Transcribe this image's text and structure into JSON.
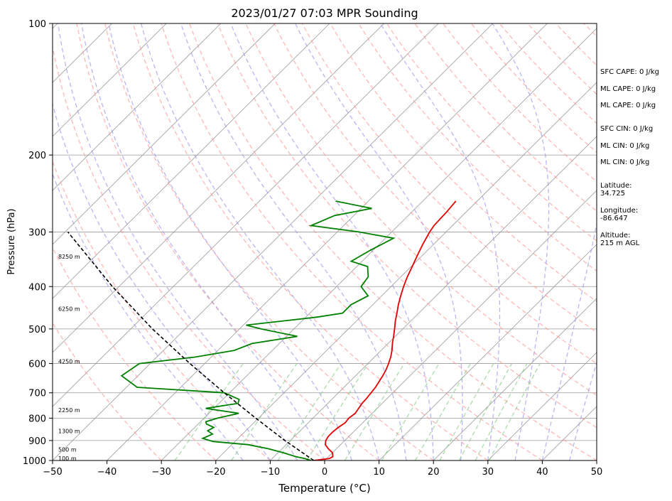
{
  "chart_data": {
    "type": "skew-t",
    "title": "2023/01/27 07:03 MPR Sounding",
    "xlabel": "Temperature (°C)",
    "ylabel": "Pressure (hPa)",
    "xlim": [
      -50,
      50
    ],
    "ylim": [
      1000,
      100
    ],
    "y_scale": "log",
    "grid": true,
    "x_ticks": [
      -50,
      -40,
      -30,
      -20,
      -10,
      0,
      10,
      20,
      30,
      40,
      50
    ],
    "y_ticks": [
      1000,
      900,
      800,
      700,
      600,
      500,
      400,
      300,
      200,
      100
    ],
    "colors": {
      "temperature": "#e00000",
      "dewpoint": "#008000",
      "parcel": "#000000",
      "dry_adiabat": "#ff9999",
      "moist_adiabat": "#9999ee",
      "mixing_ratio": "#88cc88",
      "isotherm": "#999999"
    },
    "series": [
      {
        "key": "temperature",
        "points": [
          [
            1000,
            -2.0
          ],
          [
            990,
            0.5
          ],
          [
            980,
            0.8
          ],
          [
            960,
            0.0
          ],
          [
            940,
            -1.5
          ],
          [
            920,
            -2.8
          ],
          [
            900,
            -3.5
          ],
          [
            880,
            -3.8
          ],
          [
            860,
            -3.8
          ],
          [
            840,
            -3.6
          ],
          [
            820,
            -3.2
          ],
          [
            800,
            -3.4
          ],
          [
            780,
            -3.1
          ],
          [
            760,
            -3.4
          ],
          [
            740,
            -3.7
          ],
          [
            720,
            -3.8
          ],
          [
            700,
            -4.0
          ],
          [
            680,
            -4.2
          ],
          [
            660,
            -4.6
          ],
          [
            640,
            -5.0
          ],
          [
            620,
            -5.5
          ],
          [
            600,
            -6.2
          ],
          [
            580,
            -7.0
          ],
          [
            560,
            -8.0
          ],
          [
            540,
            -9.2
          ],
          [
            520,
            -10.3
          ],
          [
            500,
            -11.5
          ],
          [
            480,
            -12.8
          ],
          [
            460,
            -14.0
          ],
          [
            440,
            -15.3
          ],
          [
            420,
            -16.5
          ],
          [
            400,
            -17.7
          ],
          [
            380,
            -18.8
          ],
          [
            360,
            -19.8
          ],
          [
            340,
            -20.9
          ],
          [
            320,
            -22.0
          ],
          [
            300,
            -23.0
          ],
          [
            290,
            -23.4
          ],
          [
            280,
            -23.5
          ],
          [
            270,
            -23.6
          ],
          [
            260,
            -23.8
          ],
          [
            255,
            -23.9
          ]
        ]
      },
      {
        "key": "dewpoint",
        "points": [
          [
            1000,
            -2.5
          ],
          [
            990,
            -4.0
          ],
          [
            980,
            -6.0
          ],
          [
            960,
            -9.0
          ],
          [
            940,
            -12.5
          ],
          [
            920,
            -17.0
          ],
          [
            905,
            -24.0
          ],
          [
            890,
            -26.5
          ],
          [
            870,
            -25.5
          ],
          [
            855,
            -27.0
          ],
          [
            840,
            -26.5
          ],
          [
            825,
            -28.5
          ],
          [
            815,
            -29.0
          ],
          [
            800,
            -27.5
          ],
          [
            780,
            -24.5
          ],
          [
            760,
            -31.5
          ],
          [
            740,
            -26.5
          ],
          [
            725,
            -27.0
          ],
          [
            700,
            -31.0
          ],
          [
            680,
            -48.0
          ],
          [
            640,
            -53.0
          ],
          [
            600,
            -52.0
          ],
          [
            580,
            -43.0
          ],
          [
            560,
            -37.0
          ],
          [
            540,
            -35.0
          ],
          [
            520,
            -28.0
          ],
          [
            500,
            -36.0
          ],
          [
            490,
            -39.5
          ],
          [
            470,
            -28.0
          ],
          [
            460,
            -24.0
          ],
          [
            440,
            -24.0
          ],
          [
            420,
            -22.5
          ],
          [
            400,
            -25.5
          ],
          [
            380,
            -26.0
          ],
          [
            360,
            -28.0
          ],
          [
            350,
            -32.0
          ],
          [
            330,
            -30.5
          ],
          [
            310,
            -28.5
          ],
          [
            300,
            -36.0
          ],
          [
            290,
            -46.0
          ],
          [
            275,
            -43.5
          ],
          [
            265,
            -38.0
          ],
          [
            255,
            -46.0
          ]
        ]
      },
      {
        "key": "parcel",
        "points": [
          [
            1000,
            -2.0
          ],
          [
            900,
            -11.0
          ],
          [
            800,
            -20.5
          ],
          [
            700,
            -31.0
          ],
          [
            600,
            -42.7
          ],
          [
            500,
            -56.0
          ],
          [
            400,
            -71.2
          ],
          [
            300,
            -89.5
          ]
        ]
      }
    ],
    "height_labels": [
      {
        "p": 1000,
        "text": "100 m"
      },
      {
        "p": 955,
        "text": "500 m"
      },
      {
        "p": 865,
        "text": "1300 m"
      },
      {
        "p": 775,
        "text": "2250 m"
      },
      {
        "p": 600,
        "text": "4250 m"
      },
      {
        "p": 455,
        "text": "6250 m"
      },
      {
        "p": 345,
        "text": "8250 m"
      }
    ],
    "annotations": [
      "SFC CAPE: 0 J/kg",
      "ML CAPE: 0 J/kg",
      "ML CAPE: 0 J/kg",
      "SFC CIN: 0 J/kg",
      "ML CIN: 0 J/kg",
      "ML CIN: 0 J/kg",
      "Latitude:\n34.725",
      "Longitude:\n-86.647",
      "Altitude:\n215 m AGL"
    ]
  }
}
